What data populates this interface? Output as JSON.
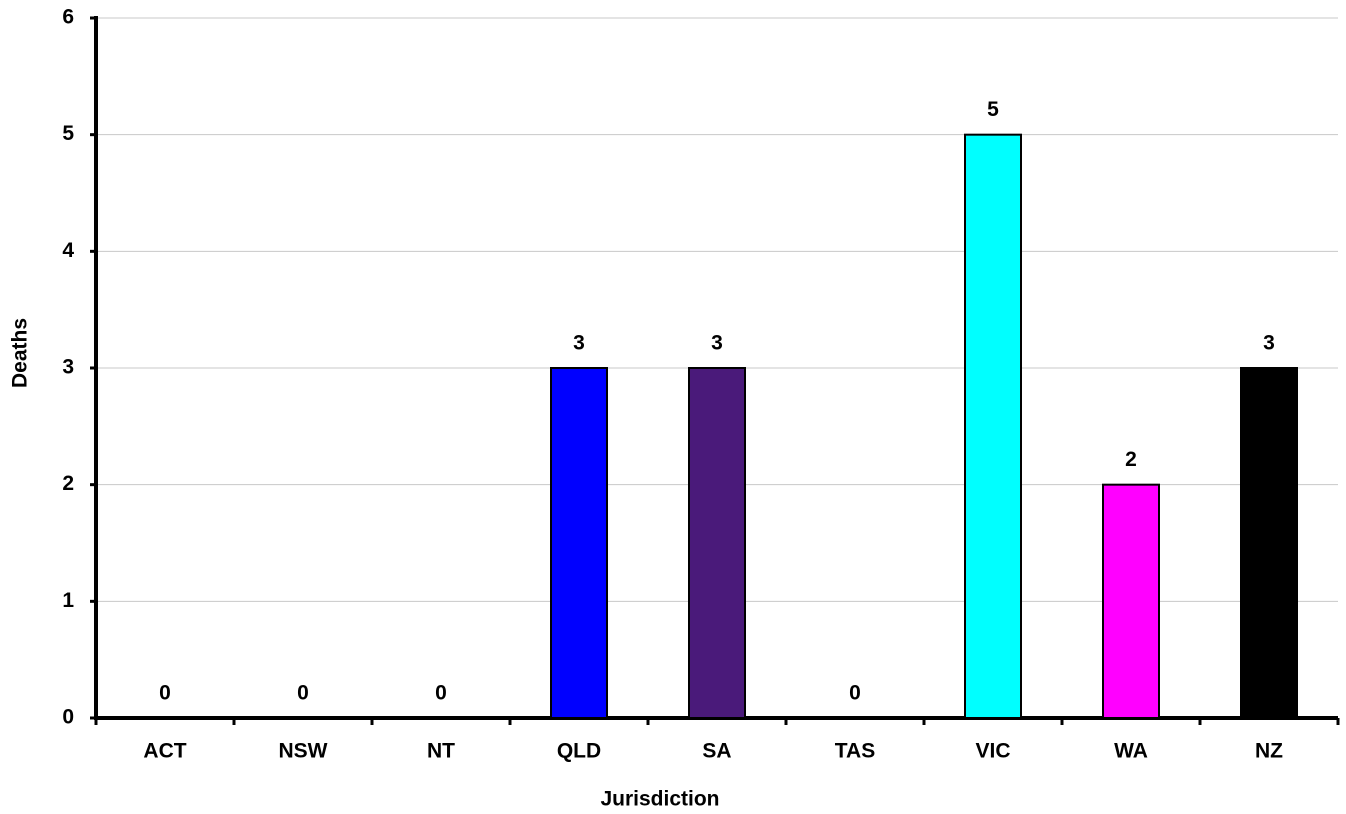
{
  "chart_data": {
    "type": "bar",
    "x_label": "Jurisdiction",
    "y_label": "Deaths",
    "categories": [
      "ACT",
      "NSW",
      "NT",
      "QLD",
      "SA",
      "TAS",
      "VIC",
      "WA",
      "NZ"
    ],
    "values": [
      0,
      0,
      0,
      3,
      3,
      0,
      5,
      2,
      3
    ],
    "colors": [
      null,
      null,
      null,
      "#0000ff",
      "#4a1a7a",
      null,
      "#00ffff",
      "#ff00ff",
      "#000000"
    ],
    "ylim": [
      0,
      6
    ],
    "yticks": [
      0,
      1,
      2,
      3,
      4,
      5,
      6
    ],
    "grid": true
  }
}
